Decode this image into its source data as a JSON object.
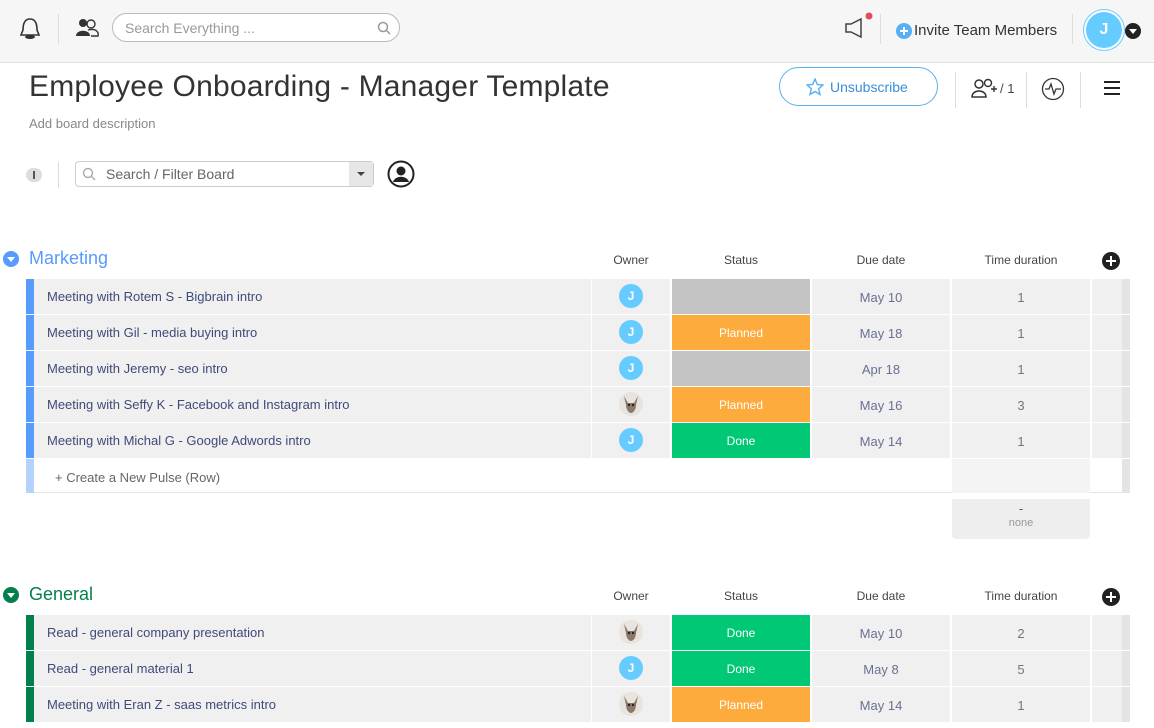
{
  "topbar": {
    "search_placeholder": "Search Everything ...",
    "invite": "Invite Team Members",
    "avatar": "J"
  },
  "board": {
    "title": "Employee Onboarding - Manager Template",
    "description": "Add board description",
    "unsubscribe": "Unsubscribe",
    "members": "/ 1",
    "filter_placeholder": "Search / Filter Board"
  },
  "groups": [
    {
      "name": "Marketing",
      "color": "#579bfc",
      "columns": [
        "Owner",
        "Status",
        "Due date",
        "Time duration"
      ],
      "rows": [
        {
          "name": "Meeting with Rotem S - Bigbrain intro",
          "owner": "J",
          "status": null,
          "due": "May 10",
          "duration": 1
        },
        {
          "name": "Meeting with Gil - media buying intro",
          "owner": "J",
          "status": "Planned",
          "due": "May 18",
          "duration": 1
        },
        {
          "name": "Meeting with Jeremy - seo intro",
          "owner": "J",
          "status": null,
          "due": "Apr 18",
          "duration": 1
        },
        {
          "name": "Meeting with Seffy K - Facebook and Instagram intro",
          "owner": null,
          "status": "Planned",
          "due": "May 16",
          "duration": 3
        },
        {
          "name": "Meeting with Michal G - Google Adwords intro",
          "owner": "J",
          "status": "Done",
          "due": "May 14",
          "duration": 1
        }
      ],
      "new_row": "+ Create a New Pulse (Row)",
      "summary": {
        "value": "-",
        "label": "none"
      }
    },
    {
      "name": "General",
      "color": "#037f4c",
      "columns": [
        "Owner",
        "Status",
        "Due date",
        "Time duration"
      ],
      "rows": [
        {
          "name": "Read - general company presentation",
          "owner": null,
          "status": "Done",
          "due": "May 10",
          "duration": 2
        },
        {
          "name": "Read - general material 1",
          "owner": "J",
          "status": "Done",
          "due": "May 8",
          "duration": 5
        },
        {
          "name": "Meeting with Eran Z - saas metrics intro",
          "owner": null,
          "status": "Planned",
          "due": "May 14",
          "duration": 1
        }
      ]
    }
  ]
}
